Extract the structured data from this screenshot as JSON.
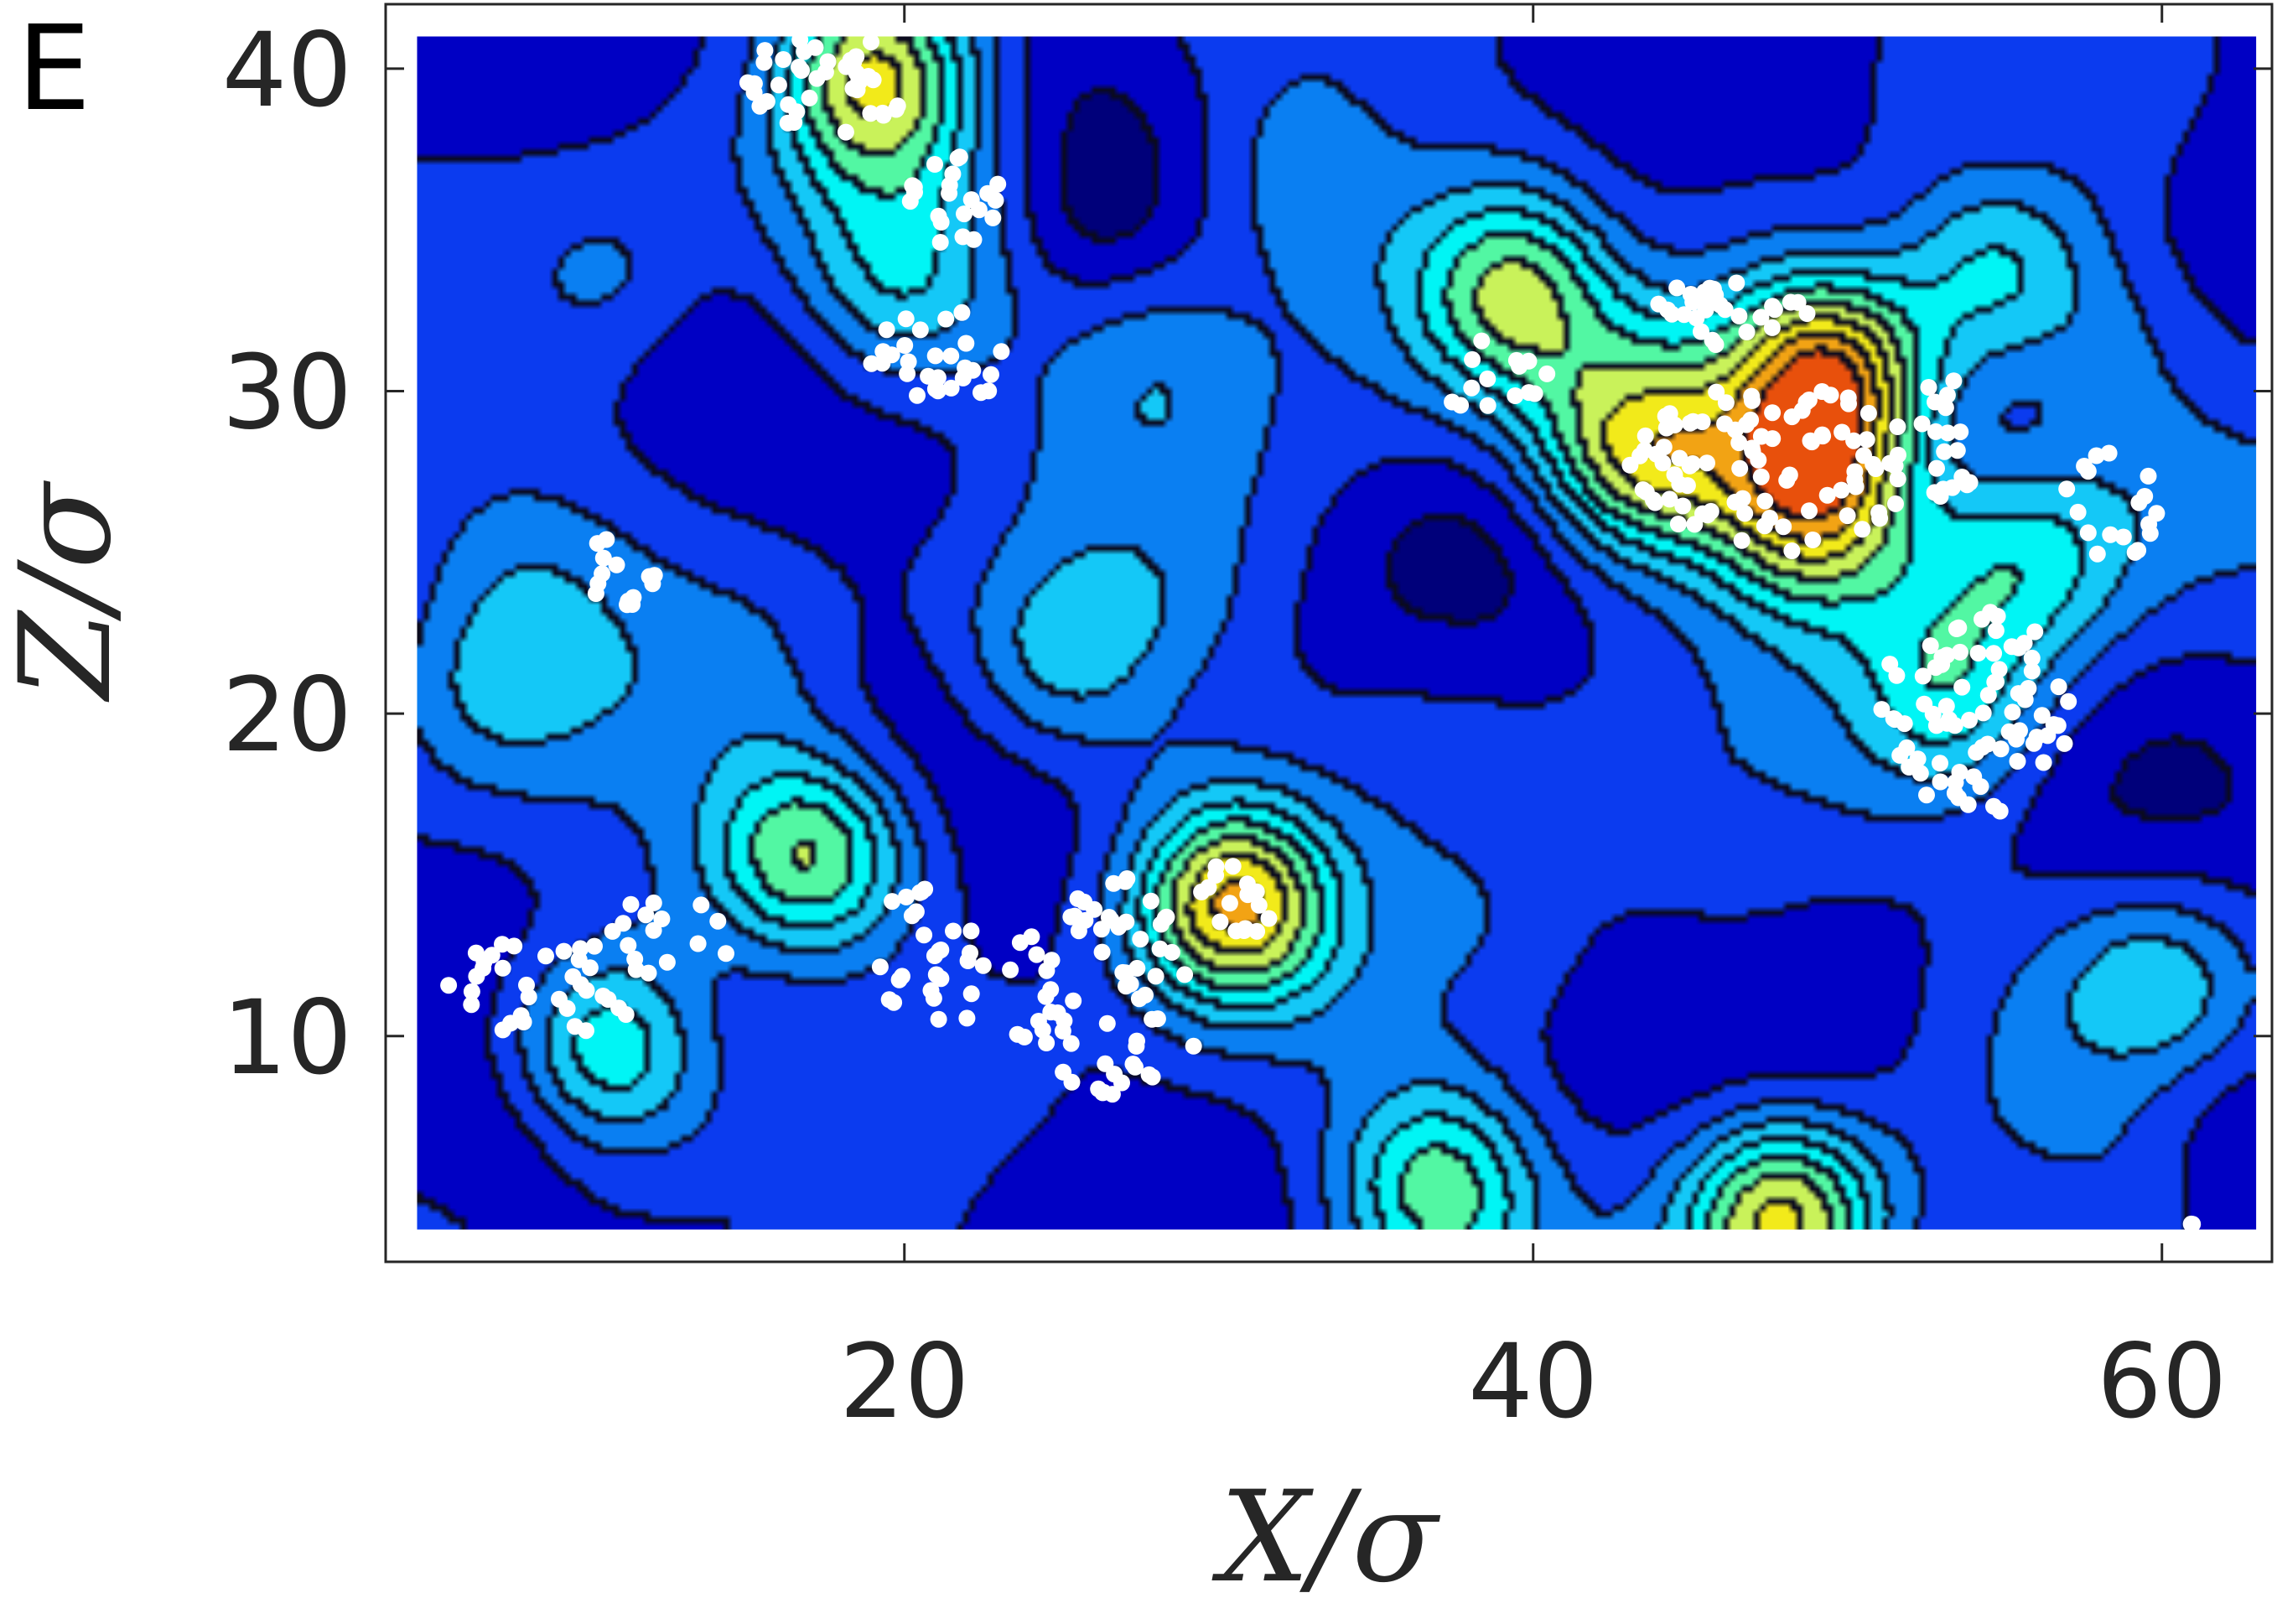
{
  "panel_label": "E",
  "chart_data": {
    "type": "heatmap",
    "title": "",
    "xlabel": "X/σ",
    "ylabel": "Z/σ",
    "xlim": [
      3.5,
      63.5
    ],
    "ylim": [
      3.0,
      42.0
    ],
    "data_x_range": [
      4.5,
      63.0
    ],
    "data_y_range": [
      4.0,
      41.0
    ],
    "x_ticks": [
      20,
      40,
      60
    ],
    "y_ticks": [
      10,
      20,
      30,
      40
    ],
    "x_tick_labels": [
      "20",
      "40",
      "60"
    ],
    "y_tick_labels": [
      "10",
      "20",
      "30",
      "40"
    ],
    "grid": false,
    "legend": "none",
    "colormap": [
      "#00007a",
      "#0000c4",
      "#0b3bef",
      "#0a7ff2",
      "#14c8f7",
      "#00f5f5",
      "#52f7a3",
      "#c9f25a",
      "#f2ea1a",
      "#f2a314",
      "#e8500c"
    ],
    "contour_line_color": "#000000",
    "marker_color": "#ffffff",
    "hotspots": [
      {
        "x": 17.0,
        "z": 15.5,
        "peak": 7
      },
      {
        "x": 10.5,
        "z": 9.5,
        "peak": 6
      },
      {
        "x": 30.5,
        "z": 14.0,
        "peak": 8
      },
      {
        "x": 49.5,
        "z": 30.5,
        "peak": 9
      },
      {
        "x": 49.0,
        "z": 26.5,
        "peak": 8
      },
      {
        "x": 43.5,
        "z": 28.0,
        "peak": 7
      },
      {
        "x": 39.5,
        "z": 33.0,
        "peak": 6
      },
      {
        "x": 19.0,
        "z": 39.8,
        "peak": 7
      },
      {
        "x": 20.0,
        "z": 33.0,
        "peak": 4
      },
      {
        "x": 54.5,
        "z": 33.5,
        "peak": 5
      },
      {
        "x": 55.5,
        "z": 24.5,
        "peak": 5
      },
      {
        "x": 53.0,
        "z": 20.5,
        "peak": 5
      },
      {
        "x": 37.0,
        "z": 5.2,
        "peak": 6
      },
      {
        "x": 48.0,
        "z": 4.2,
        "peak": 8
      },
      {
        "x": 25.0,
        "z": 21.5,
        "peak": 4
      },
      {
        "x": 6.5,
        "z": 20.5,
        "peak": 3
      },
      {
        "x": 32.5,
        "z": 36.5,
        "peak": 3
      },
      {
        "x": 28.0,
        "z": 31.0,
        "peak": 3
      },
      {
        "x": 60.0,
        "z": 11.5,
        "peak": 4
      }
    ],
    "particle_clusters": [
      {
        "x": 17.5,
        "z": 39.5,
        "rx": 2.6,
        "rz": 1.6,
        "count": 40
      },
      {
        "x": 21.5,
        "z": 36.0,
        "rx": 1.6,
        "rz": 1.5,
        "count": 22
      },
      {
        "x": 21.0,
        "z": 31.0,
        "rx": 2.2,
        "rz": 1.6,
        "count": 28
      },
      {
        "x": 11.0,
        "z": 24.5,
        "rx": 1.1,
        "rz": 1.2,
        "count": 14
      },
      {
        "x": 8.5,
        "z": 11.5,
        "rx": 3.2,
        "rz": 1.5,
        "count": 34
      },
      {
        "x": 12.5,
        "z": 13.0,
        "rx": 2.0,
        "rz": 1.5,
        "count": 16
      },
      {
        "x": 21.0,
        "z": 12.5,
        "rx": 2.0,
        "rz": 2.4,
        "count": 28
      },
      {
        "x": 26.5,
        "z": 11.5,
        "rx": 3.2,
        "rz": 3.5,
        "count": 70
      },
      {
        "x": 30.5,
        "z": 14.3,
        "rx": 1.3,
        "rz": 1.3,
        "count": 16
      },
      {
        "x": 46.5,
        "z": 32.5,
        "rx": 2.6,
        "rz": 1.2,
        "count": 30
      },
      {
        "x": 47.5,
        "z": 27.5,
        "rx": 4.5,
        "rz": 2.8,
        "count": 95
      },
      {
        "x": 38.5,
        "z": 30.5,
        "rx": 2.0,
        "rz": 1.2,
        "count": 14
      },
      {
        "x": 53.0,
        "z": 28.5,
        "rx": 1.5,
        "rz": 2.0,
        "count": 20
      },
      {
        "x": 58.5,
        "z": 26.5,
        "rx": 1.6,
        "rz": 1.8,
        "count": 18
      },
      {
        "x": 54.0,
        "z": 20.0,
        "rx": 3.2,
        "rz": 3.3,
        "count": 80
      },
      {
        "x": 60.5,
        "z": 4.2,
        "rx": 0.5,
        "rz": 0.2,
        "count": 2
      }
    ]
  }
}
